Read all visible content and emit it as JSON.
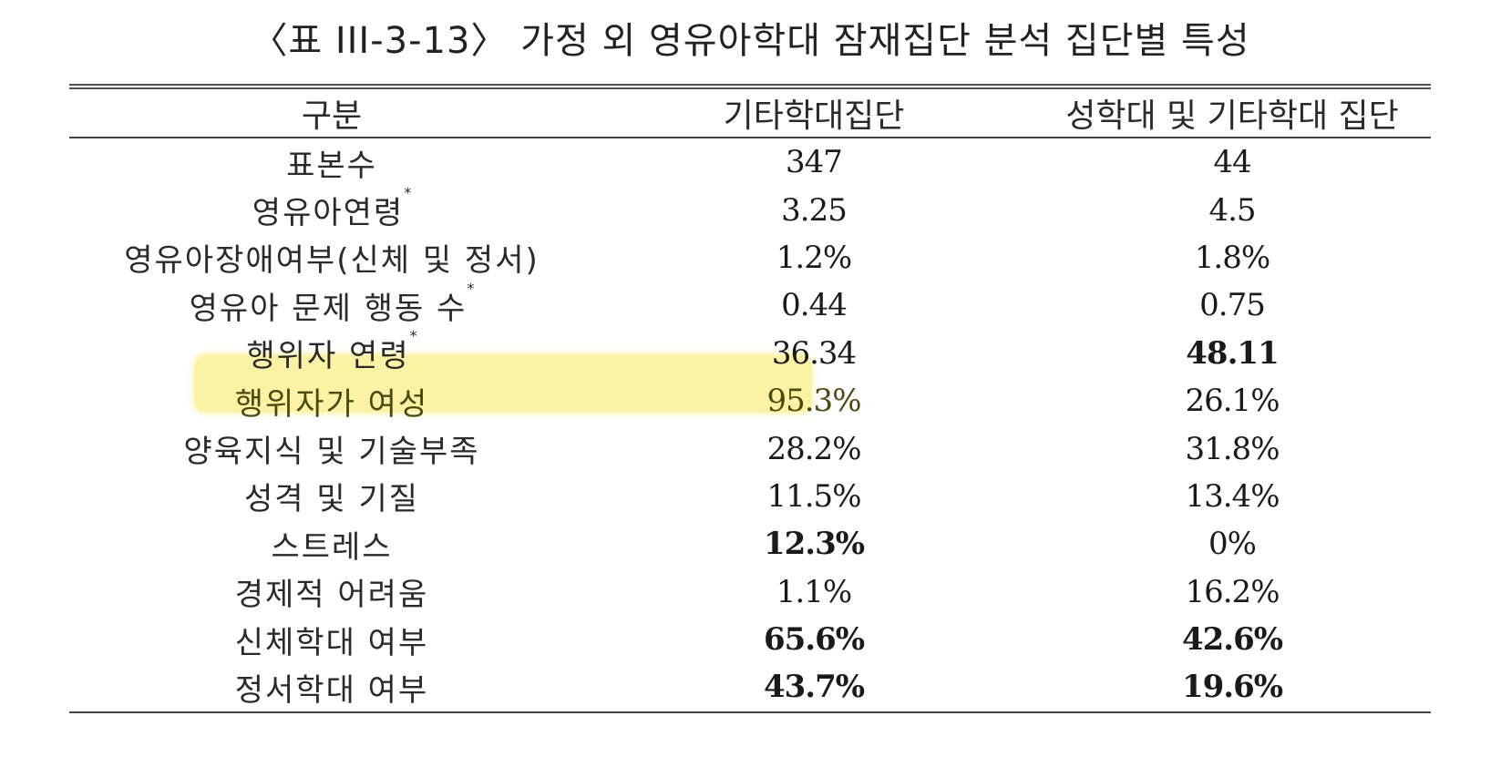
{
  "title": "〈표 III-3-13〉 가정 외 영유아학대 잠재집단 분석 집단별 특성",
  "table": {
    "headers": [
      "구분",
      "기타학대집단",
      "성학대 및 기타학대 집단"
    ],
    "rows": [
      {
        "label": "표본수",
        "mark": "",
        "col1": "347",
        "col2": "44",
        "bold1": false,
        "bold2": false,
        "highlight": false
      },
      {
        "label": "영유아연령",
        "mark": "*",
        "col1": "3.25",
        "col2": "4.5",
        "bold1": false,
        "bold2": false,
        "highlight": false
      },
      {
        "label": "영유아장애여부(신체 및 정서)",
        "mark": "",
        "col1": "1.2%",
        "col2": "1.8%",
        "bold1": false,
        "bold2": false,
        "highlight": false
      },
      {
        "label": "영유아 문제 행동 수",
        "mark": "*",
        "col1": "0.44",
        "col2": "0.75",
        "bold1": false,
        "bold2": false,
        "highlight": false
      },
      {
        "label": "행위자 연령",
        "mark": "*",
        "col1": "36.34",
        "col2": "48.11",
        "bold1": false,
        "bold2": true,
        "highlight": false
      },
      {
        "label": "행위자가 여성",
        "mark": "",
        "col1": "95.3%",
        "col2": "26.1%",
        "bold1": false,
        "bold2": false,
        "highlight": true
      },
      {
        "label": "양육지식 및 기술부족",
        "mark": "",
        "col1": "28.2%",
        "col2": "31.8%",
        "bold1": false,
        "bold2": false,
        "highlight": false
      },
      {
        "label": "성격 및 기질",
        "mark": "",
        "col1": "11.5%",
        "col2": "13.4%",
        "bold1": false,
        "bold2": false,
        "highlight": false
      },
      {
        "label": "스트레스",
        "mark": "",
        "col1": "12.3%",
        "col2": "0%",
        "bold1": true,
        "bold2": false,
        "highlight": false
      },
      {
        "label": "경제적 어려움",
        "mark": "",
        "col1": "1.1%",
        "col2": "16.2%",
        "bold1": false,
        "bold2": false,
        "highlight": false
      },
      {
        "label": "신체학대 여부",
        "mark": "",
        "col1": "65.6%",
        "col2": "42.6%",
        "bold1": true,
        "bold2": true,
        "highlight": false
      },
      {
        "label": "정서학대 여부",
        "mark": "",
        "col1": "43.7%",
        "col2": "19.6%",
        "bold1": true,
        "bold2": true,
        "highlight": false
      }
    ]
  },
  "colors": {
    "highlight": "#fbf3a3",
    "rule": "#444444",
    "text": "#1a1a1a"
  }
}
